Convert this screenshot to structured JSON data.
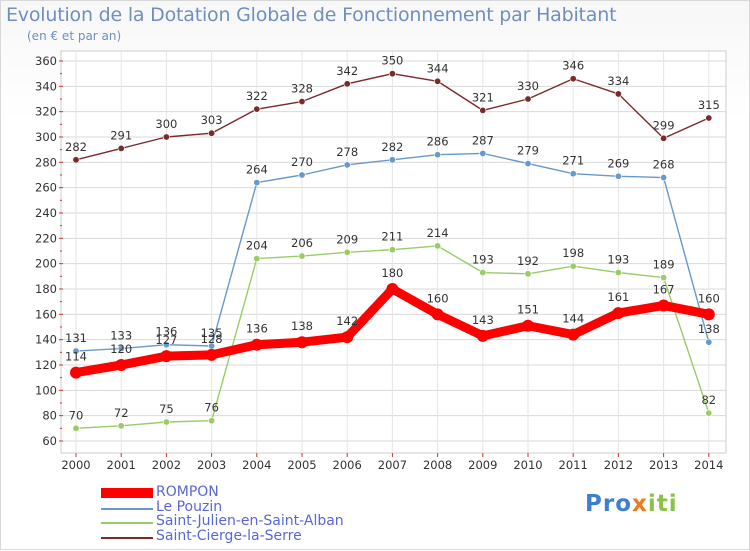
{
  "chart_data": {
    "type": "line",
    "title": "Evolution de la Dotation Globale de Fonctionnement par Habitant",
    "subtitle": "(en € et par an)",
    "xlabel": "",
    "ylabel": "",
    "x": [
      "2000",
      "2001",
      "2002",
      "2003",
      "2004",
      "2005",
      "2006",
      "2007",
      "2008",
      "2009",
      "2010",
      "2011",
      "2012",
      "2013",
      "2014"
    ],
    "ylim": [
      60,
      360
    ],
    "yticks": [
      60,
      80,
      100,
      120,
      140,
      160,
      180,
      200,
      220,
      240,
      260,
      280,
      300,
      320,
      340,
      360
    ],
    "grid": true,
    "legend_position": "bottom-left",
    "series": [
      {
        "name": "ROMPON",
        "color": "#ff0000",
        "values": [
          114,
          120,
          127,
          128,
          136,
          138,
          142,
          180,
          160,
          143,
          151,
          144,
          161,
          167,
          160
        ]
      },
      {
        "name": "Le Pouzin",
        "color": "#6699cc",
        "values": [
          131,
          133,
          136,
          135,
          264,
          270,
          278,
          282,
          286,
          287,
          279,
          271,
          269,
          268,
          138
        ]
      },
      {
        "name": "Saint-Julien-en-Saint-Alban",
        "color": "#99cc66",
        "values": [
          70,
          72,
          75,
          76,
          204,
          206,
          209,
          211,
          214,
          193,
          192,
          198,
          193,
          189,
          82
        ]
      },
      {
        "name": "Saint-Cierge-la-Serre",
        "color": "#7a2a2a",
        "values": [
          282,
          291,
          300,
          303,
          322,
          328,
          342,
          350,
          344,
          321,
          330,
          346,
          334,
          299,
          315
        ]
      }
    ]
  },
  "logo": {
    "part1": "Pro",
    "part2": "x",
    "part3": "iti"
  }
}
